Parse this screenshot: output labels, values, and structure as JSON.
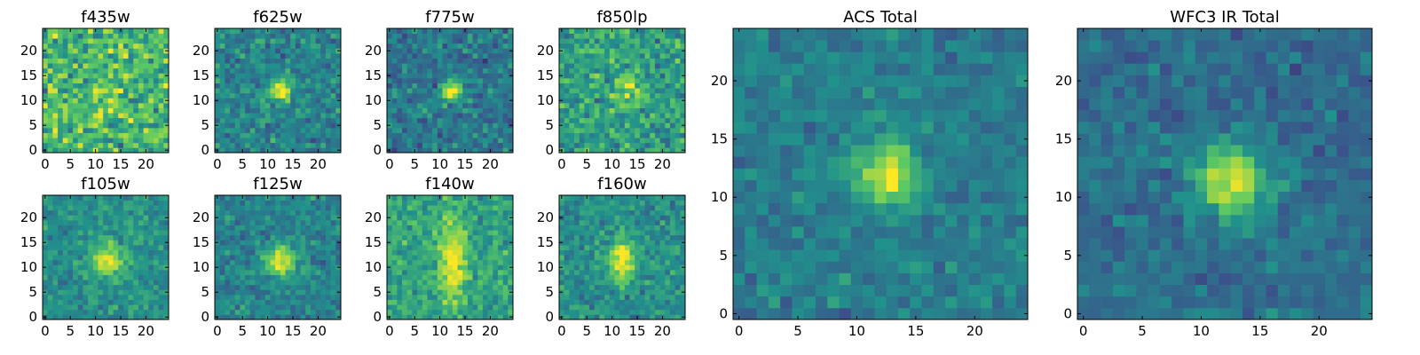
{
  "figure": {
    "colormap_stops": [
      "#440154",
      "#3b528b",
      "#21918c",
      "#5ec962",
      "#fde725"
    ]
  },
  "chart_data": [
    {
      "type": "heatmap",
      "title": "f435w",
      "grid": false,
      "size": 25,
      "xlim": [
        0,
        24
      ],
      "ylim": [
        0,
        24
      ],
      "xticks": [
        0,
        5,
        10,
        15,
        20
      ],
      "yticks": [
        0,
        5,
        10,
        15,
        20
      ],
      "source": {
        "cx": 12.5,
        "cy": 12,
        "peak": 0.12,
        "sigma": 2.6,
        "base": 0.66,
        "noise": 0.24,
        "seed": 11
      }
    },
    {
      "type": "heatmap",
      "title": "f625w",
      "grid": false,
      "size": 25,
      "xlim": [
        0,
        24
      ],
      "ylim": [
        0,
        24
      ],
      "xticks": [
        0,
        5,
        10,
        15,
        20
      ],
      "yticks": [
        0,
        5,
        10,
        15,
        20
      ],
      "source": {
        "cx": 12.5,
        "cy": 12,
        "peak": 0.52,
        "sigma": 1.6,
        "base": 0.45,
        "noise": 0.15,
        "seed": 23
      }
    },
    {
      "type": "heatmap",
      "title": "f775w",
      "grid": false,
      "size": 25,
      "xlim": [
        0,
        24
      ],
      "ylim": [
        0,
        24
      ],
      "xticks": [
        0,
        5,
        10,
        15,
        20
      ],
      "yticks": [
        0,
        5,
        10,
        15,
        20
      ],
      "source": {
        "cx": 12.5,
        "cy": 12,
        "peak": 0.56,
        "sigma": 1.5,
        "base": 0.4,
        "noise": 0.15,
        "seed": 37
      }
    },
    {
      "type": "heatmap",
      "title": "f850lp",
      "grid": false,
      "size": 25,
      "xlim": [
        0,
        24
      ],
      "ylim": [
        0,
        24
      ],
      "xticks": [
        0,
        5,
        10,
        15,
        20
      ],
      "yticks": [
        0,
        5,
        10,
        15,
        20
      ],
      "source": {
        "cx": 13,
        "cy": 12,
        "peak": 0.32,
        "sigma": 1.8,
        "base": 0.56,
        "noise": 0.18,
        "seed": 41
      }
    },
    {
      "type": "heatmap",
      "title": "f105w",
      "grid": false,
      "size": 25,
      "xlim": [
        0,
        24
      ],
      "ylim": [
        0,
        24
      ],
      "xticks": [
        0,
        5,
        10,
        15,
        20
      ],
      "yticks": [
        0,
        5,
        10,
        15,
        20
      ],
      "source": {
        "cx": 12.5,
        "cy": 11.5,
        "peak": 0.5,
        "sigma": 2.2,
        "base": 0.5,
        "noise": 0.12,
        "seed": 53
      }
    },
    {
      "type": "heatmap",
      "title": "f125w",
      "grid": false,
      "size": 25,
      "xlim": [
        0,
        24
      ],
      "ylim": [
        0,
        24
      ],
      "xticks": [
        0,
        5,
        10,
        15,
        20
      ],
      "yticks": [
        0,
        5,
        10,
        15,
        20
      ],
      "source": {
        "cx": 12.5,
        "cy": 11.5,
        "peak": 0.56,
        "sigma": 2.1,
        "base": 0.45,
        "noise": 0.12,
        "seed": 67
      }
    },
    {
      "type": "heatmap",
      "title": "f140w",
      "grid": false,
      "size": 25,
      "xlim": [
        0,
        24
      ],
      "ylim": [
        0,
        24
      ],
      "xticks": [
        0,
        5,
        10,
        15,
        20
      ],
      "yticks": [
        0,
        5,
        10,
        15,
        20
      ],
      "source": {
        "cx": 12.5,
        "cy": 11,
        "peak": 0.42,
        "sigma": 1.8,
        "elong": 3.2,
        "base": 0.58,
        "noise": 0.14,
        "seed": 79
      }
    },
    {
      "type": "heatmap",
      "title": "f160w",
      "grid": false,
      "size": 25,
      "xlim": [
        0,
        24
      ],
      "ylim": [
        0,
        24
      ],
      "xticks": [
        0,
        5,
        10,
        15,
        20
      ],
      "yticks": [
        0,
        5,
        10,
        15,
        20
      ],
      "source": {
        "cx": 12,
        "cy": 11.5,
        "peak": 0.52,
        "sigma": 1.8,
        "elong": 1.6,
        "base": 0.5,
        "noise": 0.13,
        "seed": 83
      }
    },
    {
      "type": "heatmap",
      "title": "ACS Total",
      "grid": false,
      "size": 25,
      "xlim": [
        0,
        24
      ],
      "ylim": [
        0,
        24
      ],
      "xticks": [
        0,
        5,
        10,
        15,
        20
      ],
      "yticks": [
        0,
        5,
        10,
        15,
        20
      ],
      "source": {
        "cx": 12.5,
        "cy": 12,
        "peak": 0.56,
        "sigma": 1.8,
        "base": 0.42,
        "noise": 0.1,
        "seed": 97
      }
    },
    {
      "type": "heatmap",
      "title": "WFC3 IR Total",
      "grid": false,
      "size": 25,
      "xlim": [
        0,
        24
      ],
      "ylim": [
        0,
        24
      ],
      "xticks": [
        0,
        5,
        10,
        15,
        20
      ],
      "yticks": [
        0,
        5,
        10,
        15,
        20
      ],
      "source": {
        "cx": 12.5,
        "cy": 11.5,
        "peak": 0.6,
        "sigma": 2.1,
        "base": 0.36,
        "noise": 0.1,
        "seed": 103
      }
    }
  ]
}
